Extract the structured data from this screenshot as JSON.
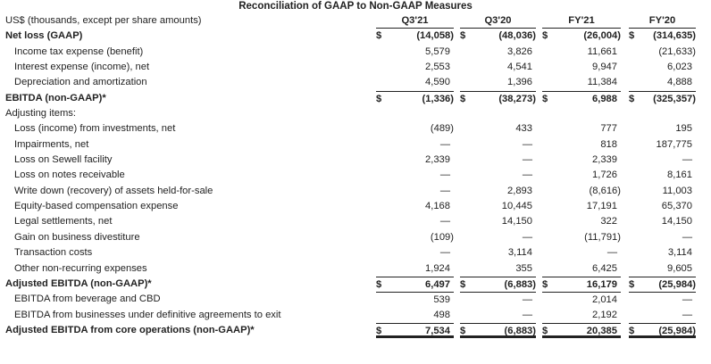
{
  "title": "Reconciliation of GAAP to Non-GAAP Measures",
  "currency_symbol": "$",
  "header": {
    "label": "US$ (thousands, except per share amounts)",
    "columns": [
      "Q3'21",
      "Q3'20",
      "FY'21",
      "FY'20"
    ]
  },
  "rows": [
    {
      "label": "Net loss (GAAP)",
      "style": "bold",
      "dollar": true,
      "values": [
        "(14,058)",
        "(48,036)",
        "(26,004)",
        "(314,635)"
      ]
    },
    {
      "label": "Income tax expense (benefit)",
      "style": "indent",
      "values": [
        "5,579",
        "3,826",
        "11,661",
        "(21,633)"
      ]
    },
    {
      "label": "Interest expense (income), net",
      "style": "indent",
      "values": [
        "2,553",
        "4,541",
        "9,947",
        "6,023"
      ]
    },
    {
      "label": "Depreciation and amortization",
      "style": "indent",
      "values": [
        "4,590",
        "1,396",
        "11,384",
        "4,888"
      ]
    },
    {
      "label": "EBITDA (non-GAAP)*",
      "style": "bold",
      "dollar": true,
      "topline": true,
      "values": [
        "(1,336)",
        "(38,273)",
        "6,988",
        "(325,357)"
      ]
    },
    {
      "label": "Adjusting items:",
      "style": "plain",
      "values": [
        "",
        "",
        "",
        ""
      ]
    },
    {
      "label": "Loss (income) from investments, net",
      "style": "indent",
      "values": [
        "(489)",
        "433",
        "777",
        "195"
      ]
    },
    {
      "label": "Impairments, net",
      "style": "indent",
      "values": [
        "—",
        "—",
        "818",
        "187,775"
      ]
    },
    {
      "label": "Loss on Sewell facility",
      "style": "indent",
      "values": [
        "2,339",
        "—",
        "2,339",
        "—"
      ]
    },
    {
      "label": "Loss on notes receivable",
      "style": "indent",
      "values": [
        "—",
        "—",
        "1,726",
        "8,161"
      ]
    },
    {
      "label": "Write down (recovery) of assets held-for-sale",
      "style": "indent",
      "values": [
        "—",
        "2,893",
        "(8,616)",
        "11,003"
      ]
    },
    {
      "label": "Equity-based compensation expense",
      "style": "indent",
      "values": [
        "4,168",
        "10,445",
        "17,191",
        "65,370"
      ]
    },
    {
      "label": "Legal settlements, net",
      "style": "indent",
      "values": [
        "—",
        "14,150",
        "322",
        "14,150"
      ]
    },
    {
      "label": "Gain on business divestiture",
      "style": "indent",
      "values": [
        "(109)",
        "—",
        "(11,791)",
        "—"
      ]
    },
    {
      "label": "Transaction costs",
      "style": "indent",
      "values": [
        "—",
        "3,114",
        "—",
        "3,114"
      ]
    },
    {
      "label": "Other non-recurring expenses",
      "style": "indent",
      "values": [
        "1,924",
        "355",
        "6,425",
        "9,605"
      ]
    },
    {
      "label": "Adjusted EBITDA (non-GAAP)*",
      "style": "bold",
      "dollar": true,
      "topline": true,
      "values": [
        "6,497",
        "(6,883)",
        "16,179",
        "(25,984)"
      ]
    },
    {
      "label": "EBITDA from beverage and CBD",
      "style": "indent",
      "topline": true,
      "values": [
        "539",
        "—",
        "2,014",
        "—"
      ]
    },
    {
      "label": "EBITDA from businesses under definitive agreements to exit",
      "style": "indent",
      "values": [
        "498",
        "—",
        "2,192",
        "—"
      ]
    },
    {
      "label": "Adjusted EBITDA from core operations (non-GAAP)*",
      "style": "bold",
      "dollar": true,
      "topline": true,
      "double": true,
      "values": [
        "7,534",
        "(6,883)",
        "20,385",
        "(25,984)"
      ]
    }
  ]
}
